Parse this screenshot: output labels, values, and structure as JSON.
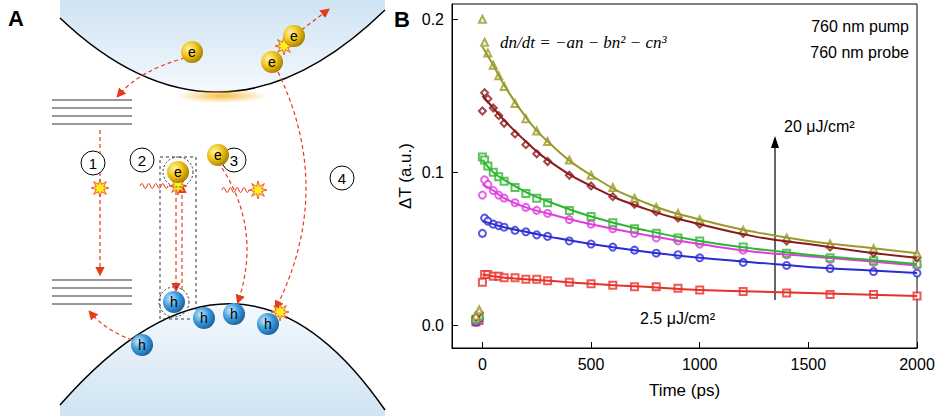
{
  "chart_data": {
    "type": "scatter",
    "label": "B",
    "x_label": "Time (ps)",
    "y_label": "ΔT (a.u.)",
    "xlim": [
      -140,
      2000
    ],
    "xticks": [
      0,
      500,
      1000,
      1500,
      2000
    ],
    "ylim": [
      -0.015,
      0.21
    ],
    "yticks": [
      {
        "value": 0,
        "label": "0.0"
      },
      0.1,
      0.2
    ],
    "grid": false,
    "annotations": {
      "equation": "dn/dt = −an − bn² − cn³",
      "pump": "760 nm pump",
      "probe": "760 nm probe",
      "fluence_max": "20 μJ/cm²",
      "fluence_min": "2.5 μJ/cm²"
    },
    "x": [
      -30,
      -15,
      0,
      10,
      25,
      50,
      75,
      100,
      150,
      200,
      250,
      300,
      400,
      500,
      600,
      700,
      800,
      900,
      1000,
      1200,
      1400,
      1600,
      1800,
      2000
    ],
    "fit_x": [
      0,
      50,
      100,
      200,
      300,
      500,
      750,
      1000,
      1250,
      1500,
      1750,
      2000
    ],
    "series": [
      {
        "color": "#e8312b",
        "marker": "square",
        "line_style": "solid",
        "values": [
          0.002,
          0.003,
          0.028,
          0.033,
          0.033,
          0.032,
          0.032,
          0.031,
          0.031,
          0.03,
          0.03,
          0.029,
          0.028,
          0.027,
          0.026,
          0.025,
          0.025,
          0.024,
          0.023,
          0.022,
          0.021,
          0.02,
          0.02,
          0.019
        ],
        "fit_values": [
          0.033,
          0.032,
          0.031,
          0.03,
          0.029,
          0.027,
          0.025,
          0.023,
          0.022,
          0.021,
          0.02,
          0.019
        ]
      },
      {
        "color": "#2b2bd6",
        "marker": "circle",
        "line_style": "solid",
        "values": [
          0.002,
          0.004,
          0.06,
          0.07,
          0.068,
          0.066,
          0.065,
          0.064,
          0.062,
          0.061,
          0.059,
          0.058,
          0.055,
          0.053,
          0.051,
          0.049,
          0.047,
          0.046,
          0.044,
          0.041,
          0.039,
          0.037,
          0.035,
          0.034
        ],
        "fit_values": [
          0.068,
          0.066,
          0.064,
          0.061,
          0.058,
          0.053,
          0.048,
          0.044,
          0.041,
          0.038,
          0.036,
          0.034
        ]
      },
      {
        "color": "#e03ce0",
        "marker": "circle",
        "line_style": "solid",
        "values": [
          0.003,
          0.005,
          0.085,
          0.095,
          0.092,
          0.088,
          0.085,
          0.083,
          0.08,
          0.077,
          0.075,
          0.073,
          0.069,
          0.066,
          0.063,
          0.06,
          0.057,
          0.055,
          0.053,
          0.049,
          0.046,
          0.043,
          0.041,
          0.039
        ],
        "fit_values": [
          0.092,
          0.088,
          0.083,
          0.077,
          0.073,
          0.066,
          0.059,
          0.053,
          0.048,
          0.045,
          0.042,
          0.039
        ]
      },
      {
        "color": "#2fb52f",
        "marker": "square",
        "line_style": "solid",
        "values": [
          0.004,
          0.006,
          0.11,
          0.108,
          0.104,
          0.1,
          0.097,
          0.094,
          0.09,
          0.086,
          0.083,
          0.08,
          0.075,
          0.071,
          0.067,
          0.063,
          0.06,
          0.057,
          0.055,
          0.051,
          0.047,
          0.044,
          0.042,
          0.04
        ],
        "fit_values": [
          0.108,
          0.1,
          0.095,
          0.087,
          0.081,
          0.071,
          0.062,
          0.055,
          0.05,
          0.046,
          0.043,
          0.04
        ]
      },
      {
        "color": "#8b1a1a",
        "marker": "diamond",
        "line_style": "solid",
        "values": [
          0.005,
          0.008,
          0.14,
          0.152,
          0.148,
          0.142,
          0.137,
          0.132,
          0.125,
          0.118,
          0.112,
          0.107,
          0.098,
          0.091,
          0.084,
          0.079,
          0.074,
          0.07,
          0.066,
          0.06,
          0.055,
          0.051,
          0.047,
          0.044
        ],
        "fit_values": [
          0.15,
          0.142,
          0.134,
          0.12,
          0.108,
          0.091,
          0.076,
          0.066,
          0.058,
          0.053,
          0.048,
          0.044
        ]
      },
      {
        "color": "#9a9a2a",
        "marker": "triangle",
        "line_style": "solid",
        "values": [
          0.006,
          0.01,
          0.2,
          0.185,
          0.178,
          0.17,
          0.163,
          0.156,
          0.145,
          0.135,
          0.127,
          0.12,
          0.108,
          0.098,
          0.09,
          0.083,
          0.077,
          0.073,
          0.069,
          0.062,
          0.057,
          0.053,
          0.05,
          0.047
        ],
        "fit_values": [
          0.182,
          0.17,
          0.157,
          0.136,
          0.12,
          0.098,
          0.08,
          0.069,
          0.061,
          0.055,
          0.051,
          0.047
        ]
      }
    ]
  },
  "diagram": {
    "label": "A",
    "processes": [
      "1",
      "2",
      "3",
      "4"
    ],
    "electrons": [
      "e",
      "e",
      "e",
      "e",
      "e"
    ],
    "holes": [
      "h",
      "h",
      "h",
      "h",
      "h"
    ]
  }
}
